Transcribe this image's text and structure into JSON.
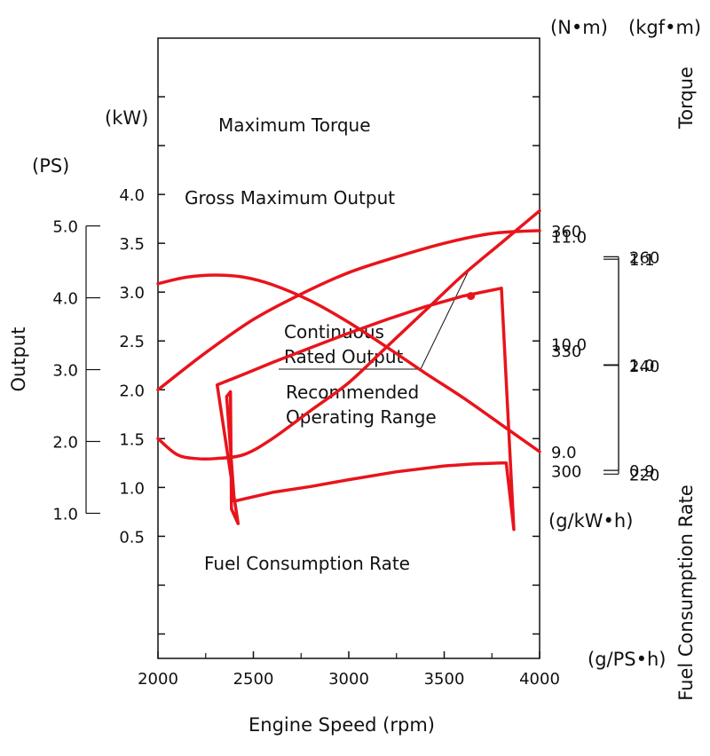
{
  "chart_data": {
    "type": "line",
    "title": "",
    "xlabel": "Engine Speed (rpm)",
    "xlim": [
      2000,
      4000
    ],
    "x_ticks": [
      "2000",
      "2500",
      "3000",
      "3500",
      "4000"
    ],
    "axes": {
      "kw": {
        "unit": "(kW)",
        "range": [
          -0.75,
          5.6
        ],
        "ticks": [
          "0.5",
          "1.0",
          "1.5",
          "2.0",
          "2.5",
          "3.0",
          "3.5",
          "4.0"
        ]
      },
      "ps": {
        "unit": "(PS)",
        "label": "Output",
        "ticks": [
          "1.0",
          "2.0",
          "3.0",
          "4.0",
          "5.0"
        ]
      },
      "torque_nm": {
        "unit": "(N•m)",
        "range": [
          7.08,
          12.84
        ],
        "ticks": [
          "9.0",
          "10.0",
          "11.0"
        ]
      },
      "torque_kgfm": {
        "unit": "(kgf•m)",
        "label": "Torque",
        "ticks": [
          "0.9",
          "1.0",
          "1.1"
        ]
      },
      "fuel_gkwh": {
        "unit": "(g/kW•h)",
        "range": [
          253,
          408.2
        ],
        "ticks": [
          "300",
          "330",
          "360"
        ]
      },
      "fuel_gpsh": {
        "unit": "(g/PS•h)",
        "label": "Fuel Consumption Rate",
        "ticks": [
          "220",
          "240",
          "260"
        ]
      }
    },
    "series": [
      {
        "name": "Maximum Torque",
        "axis": "torque_nm",
        "color": "#e8141c",
        "x": [
          2000,
          2150,
          2300,
          2450,
          2600,
          2800,
          3000,
          3200,
          3400,
          3600,
          3800,
          4000
        ],
        "y": [
          10.56,
          10.62,
          10.64,
          10.62,
          10.55,
          10.4,
          10.2,
          9.97,
          9.73,
          9.5,
          9.25,
          9.0
        ]
      },
      {
        "name": "Gross Maximum Output",
        "axis": "kw",
        "color": "#e8141c",
        "x": [
          2000,
          2250,
          2500,
          2750,
          3000,
          3250,
          3500,
          3750,
          4000
        ],
        "y": [
          2.0,
          2.38,
          2.72,
          2.98,
          3.2,
          3.36,
          3.5,
          3.6,
          3.63
        ]
      },
      {
        "name": "Fuel Consumption Rate",
        "axis": "fuel_gkwh",
        "color": "#e8141c",
        "x": [
          2000,
          2100,
          2200,
          2300,
          2450,
          2600,
          2800,
          3000,
          3200,
          3400,
          3600,
          3800,
          4000
        ],
        "y": [
          308,
          304,
          303,
          303,
          304,
          308,
          315,
          322,
          331,
          340,
          349,
          357,
          365
        ]
      },
      {
        "name": "Recommended Operating Range",
        "axis": "kw",
        "color": "#e8141c",
        "closed": true,
        "x": [
          2310,
          2450,
          2600,
          2800,
          3000,
          3200,
          3400,
          3600,
          3800,
          3865,
          3825,
          3800,
          3650,
          3500,
          3250,
          3000,
          2800,
          2600,
          2400,
          2360,
          2380,
          2385,
          2420
        ],
        "y": [
          2.05,
          2.16,
          2.28,
          2.43,
          2.58,
          2.72,
          2.85,
          2.96,
          3.04,
          0.57,
          1.25,
          1.25,
          1.24,
          1.22,
          1.16,
          1.08,
          1.01,
          0.95,
          0.86,
          1.93,
          1.98,
          0.78,
          0.63
        ]
      },
      {
        "name": "Continuous Rated Output",
        "axis": "kw",
        "color": "#e8141c",
        "type": "point",
        "x": [
          3640
        ],
        "y": [
          2.96
        ]
      }
    ],
    "labels": {
      "max_torque": "Maximum Torque",
      "gross_output": "Gross Maximum Output",
      "continuous_line1": "Continuous",
      "continuous_line2": "Rated Output",
      "range_line1": "Recommended",
      "range_line2": "Operating Range",
      "fuel": "Fuel Consumption Rate"
    }
  }
}
